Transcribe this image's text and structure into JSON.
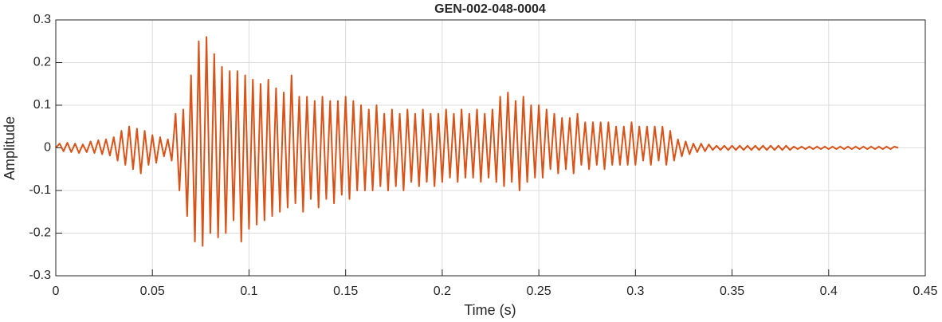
{
  "chart_data": {
    "type": "line",
    "title": "GEN-002-048-0004",
    "xlabel": "Time (s)",
    "ylabel": "Amplitude",
    "x": [
      0,
      0.002,
      0.004,
      0.006,
      0.008,
      0.01,
      0.012,
      0.014,
      0.016,
      0.018,
      0.02,
      0.022,
      0.024,
      0.026,
      0.028,
      0.03,
      0.032,
      0.034,
      0.036,
      0.038,
      0.04,
      0.042,
      0.044,
      0.046,
      0.048,
      0.05,
      0.052,
      0.054,
      0.056,
      0.058,
      0.06,
      0.062,
      0.064,
      0.066,
      0.068,
      0.07,
      0.072,
      0.074,
      0.076,
      0.078,
      0.08,
      0.082,
      0.084,
      0.086,
      0.088,
      0.09,
      0.092,
      0.094,
      0.096,
      0.098,
      0.1,
      0.102,
      0.104,
      0.106,
      0.108,
      0.11,
      0.112,
      0.114,
      0.116,
      0.118,
      0.12,
      0.122,
      0.124,
      0.126,
      0.128,
      0.13,
      0.132,
      0.134,
      0.136,
      0.138,
      0.14,
      0.142,
      0.144,
      0.146,
      0.148,
      0.15,
      0.152,
      0.154,
      0.156,
      0.158,
      0.16,
      0.162,
      0.164,
      0.166,
      0.168,
      0.17,
      0.172,
      0.174,
      0.176,
      0.178,
      0.18,
      0.182,
      0.184,
      0.186,
      0.188,
      0.19,
      0.192,
      0.194,
      0.196,
      0.198,
      0.2,
      0.202,
      0.204,
      0.206,
      0.208,
      0.21,
      0.212,
      0.214,
      0.216,
      0.218,
      0.22,
      0.222,
      0.224,
      0.226,
      0.228,
      0.23,
      0.232,
      0.234,
      0.236,
      0.238,
      0.24,
      0.242,
      0.244,
      0.246,
      0.248,
      0.25,
      0.252,
      0.254,
      0.256,
      0.258,
      0.26,
      0.262,
      0.264,
      0.266,
      0.268,
      0.27,
      0.272,
      0.274,
      0.276,
      0.278,
      0.28,
      0.282,
      0.284,
      0.286,
      0.288,
      0.29,
      0.292,
      0.294,
      0.296,
      0.298,
      0.3,
      0.302,
      0.304,
      0.306,
      0.308,
      0.31,
      0.312,
      0.314,
      0.316,
      0.318,
      0.32,
      0.322,
      0.324,
      0.326,
      0.328,
      0.33,
      0.332,
      0.334,
      0.336,
      0.338,
      0.34,
      0.342,
      0.344,
      0.346,
      0.348,
      0.35,
      0.352,
      0.354,
      0.356,
      0.358,
      0.36,
      0.362,
      0.364,
      0.366,
      0.368,
      0.37,
      0.372,
      0.374,
      0.376,
      0.378,
      0.38,
      0.382,
      0.384,
      0.386,
      0.388,
      0.39,
      0.392,
      0.394,
      0.396,
      0.398,
      0.4,
      0.402,
      0.404,
      0.406,
      0.408,
      0.41,
      0.412,
      0.414,
      0.416,
      0.418,
      0.42,
      0.422,
      0.424,
      0.426,
      0.428,
      0.43,
      0.432,
      0.434,
      0.436
    ],
    "values": [
      0,
      0.01,
      -0.008,
      0.012,
      -0.01,
      0.01,
      -0.012,
      0.008,
      -0.01,
      0.015,
      -0.012,
      0.018,
      -0.015,
      0.02,
      -0.018,
      0.025,
      -0.03,
      0.04,
      -0.04,
      0.05,
      -0.05,
      0.045,
      -0.06,
      0.04,
      -0.04,
      0.03,
      -0.035,
      0.025,
      -0.02,
      0.02,
      -0.03,
      0.08,
      -0.1,
      0.09,
      -0.16,
      0.17,
      -0.22,
      0.25,
      -0.23,
      0.26,
      -0.2,
      0.22,
      -0.21,
      0.19,
      -0.2,
      0.18,
      -0.17,
      0.18,
      -0.22,
      0.17,
      -0.19,
      0.16,
      -0.18,
      0.15,
      -0.17,
      0.16,
      -0.16,
      0.14,
      -0.15,
      0.13,
      -0.14,
      0.17,
      -0.13,
      0.12,
      -0.15,
      0.12,
      -0.12,
      0.11,
      -0.14,
      0.12,
      -0.12,
      0.11,
      -0.13,
      0.11,
      -0.11,
      0.12,
      -0.12,
      0.11,
      -0.1,
      0.1,
      -0.1,
      0.09,
      -0.1,
      0.1,
      -0.09,
      0.08,
      -0.1,
      0.09,
      -0.09,
      0.08,
      -0.1,
      0.09,
      -0.08,
      0.08,
      -0.09,
      0.09,
      -0.08,
      0.08,
      -0.09,
      0.08,
      -0.08,
      0.09,
      -0.07,
      0.08,
      -0.08,
      0.09,
      -0.07,
      0.08,
      -0.07,
      0.09,
      -0.08,
      0.08,
      -0.07,
      0.09,
      -0.08,
      0.12,
      -0.09,
      0.13,
      -0.08,
      0.11,
      -0.1,
      0.12,
      -0.08,
      0.1,
      -0.07,
      0.1,
      -0.07,
      0.09,
      -0.05,
      0.08,
      -0.06,
      0.07,
      -0.05,
      0.07,
      -0.06,
      0.08,
      -0.04,
      0.06,
      -0.05,
      0.06,
      -0.04,
      0.06,
      -0.05,
      0.06,
      -0.04,
      0.05,
      -0.04,
      0.05,
      -0.04,
      0.06,
      -0.04,
      0.05,
      -0.03,
      0.05,
      -0.04,
      0.05,
      -0.03,
      0.05,
      -0.04,
      0.04,
      -0.03,
      0.02,
      -0.02,
      0.015,
      -0.015,
      0.01,
      -0.01,
      0.01,
      -0.008,
      0.008,
      -0.005,
      0.005,
      -0.005,
      0.005,
      -0.005,
      0.005,
      -0.005,
      0.005,
      -0.005,
      0.005,
      -0.005,
      0.005,
      -0.005,
      0.005,
      -0.005,
      0.005,
      -0.005,
      0.005,
      -0.005,
      0.005,
      -0.005,
      0.003,
      -0.003,
      0.003,
      -0.003,
      0.003,
      -0.003,
      0.003,
      -0.003,
      0.003,
      -0.003,
      0.003,
      -0.003,
      0.003,
      -0.003,
      0.003,
      -0.003,
      0.003,
      -0.003,
      0.003,
      -0.003,
      0.003,
      -0.003,
      0.003,
      -0.003,
      0.003,
      -0.003,
      0.003,
      0
    ],
    "color": "#D95319",
    "xlim": [
      0,
      0.45
    ],
    "xticks": [
      0,
      0.05,
      0.1,
      0.15,
      0.2,
      0.25,
      0.3,
      0.35,
      0.4,
      0.45
    ],
    "ylim": [
      -0.3,
      0.3
    ],
    "yticks": [
      -0.3,
      -0.2,
      -0.1,
      0,
      0.1,
      0.2,
      0.3
    ],
    "grid": true
  }
}
